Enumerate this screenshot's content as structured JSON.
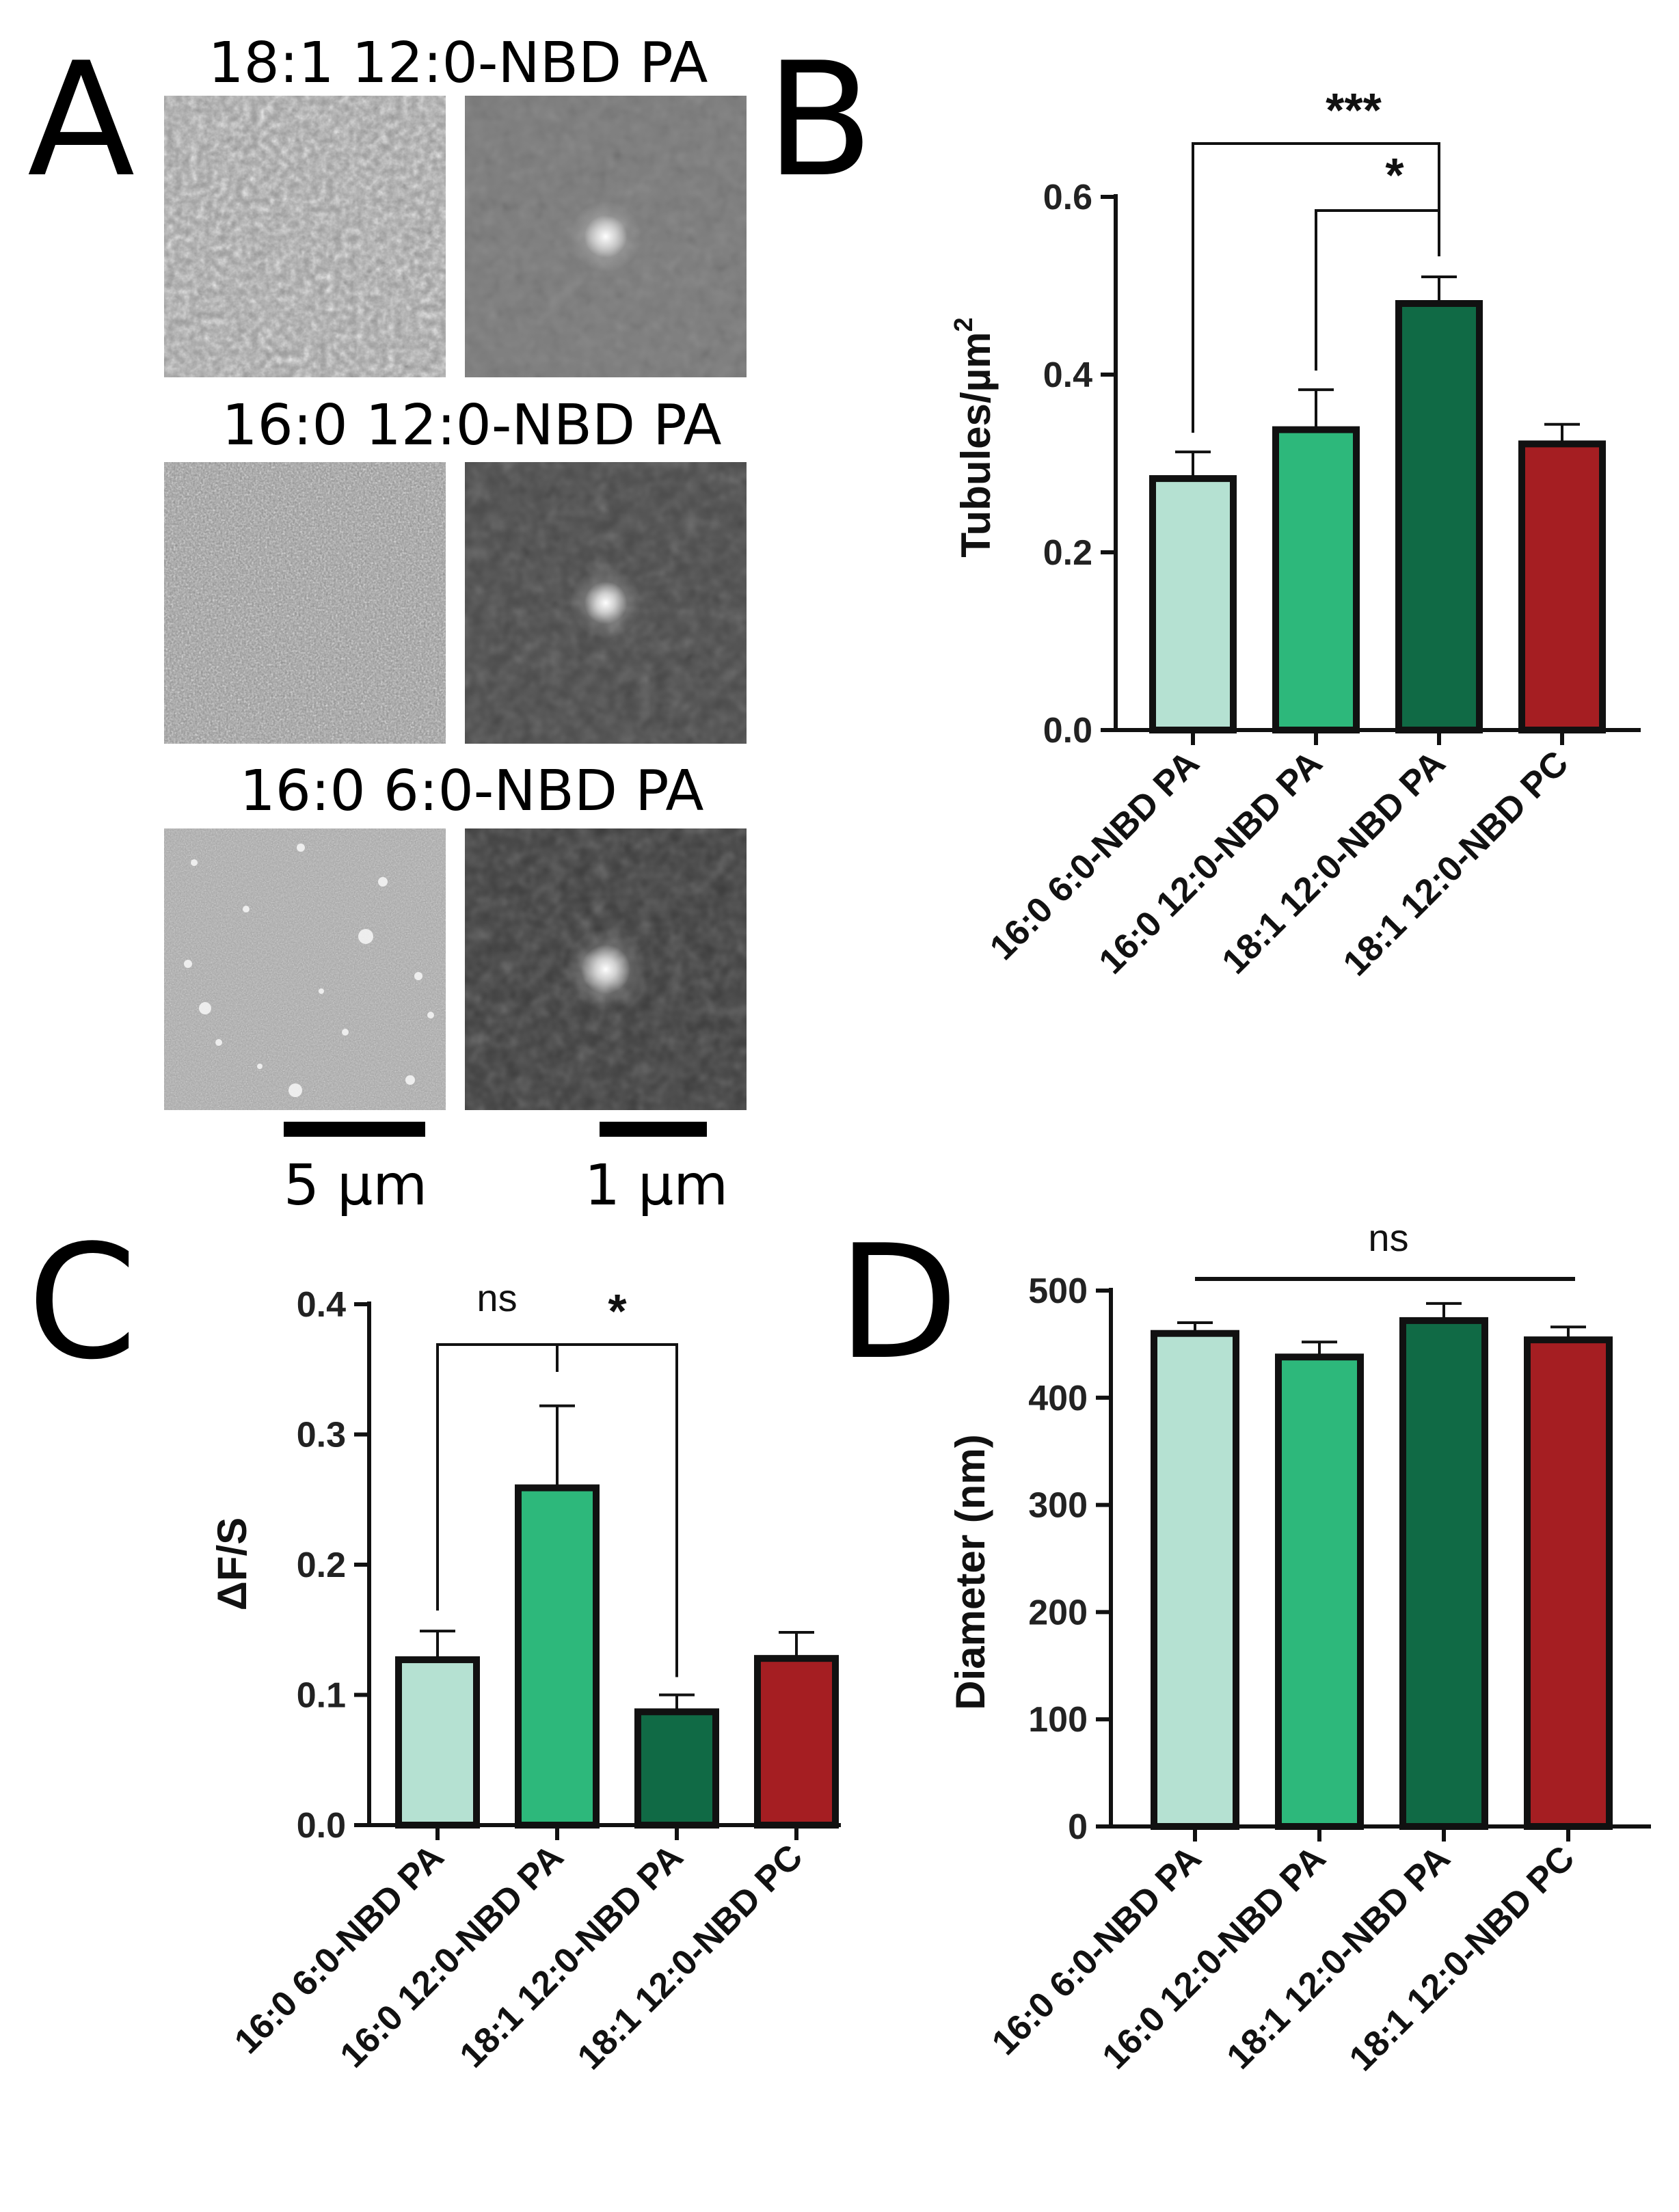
{
  "panels": {
    "a": {
      "letter": "A",
      "rows": [
        {
          "title": "18:1 12:0-NBD PA"
        },
        {
          "title": "16:0 12:0-NBD PA"
        },
        {
          "title": "16:0 6:0-NBD PA"
        }
      ],
      "scalebars": {
        "left": "5 µm",
        "right": "1 µm"
      }
    },
    "b": {
      "letter": "B"
    },
    "c": {
      "letter": "C"
    },
    "d": {
      "letter": "D"
    }
  },
  "colors": {
    "bar1": "#b5e1d2",
    "bar2": "#2db87b",
    "bar3": "#106a45",
    "bar4": "#a51e22",
    "stroke": "#111111"
  },
  "chart_data": [
    {
      "id": "B",
      "type": "bar",
      "categories": [
        "16:0 6:0-NBD PA",
        "16:0 12:0-NBD PA",
        "18:1 12:0-NBD PA",
        "18:1 12:0-NBD PC"
      ],
      "values": [
        0.283,
        0.338,
        0.48,
        0.322
      ],
      "errors": [
        0.03,
        0.045,
        0.03,
        0.022
      ],
      "title": "",
      "xlabel": "",
      "ylabel_main": "Tubules/µm",
      "ylabel_sup": "2",
      "ylim": [
        0,
        0.6
      ],
      "yticks": [
        "0.0",
        "0.2",
        "0.4",
        "0.6"
      ],
      "significance": [
        {
          "from": 0,
          "to": 2,
          "label": "***"
        },
        {
          "from": 1,
          "to": 2,
          "label": "*"
        }
      ]
    },
    {
      "id": "C",
      "type": "bar",
      "categories": [
        "16:0 6:0-NBD PA",
        "16:0 12:0-NBD PA",
        "18:1 12:0-NBD PA",
        "18:1 12:0-NBD PC"
      ],
      "values": [
        0.127,
        0.259,
        0.087,
        0.128
      ],
      "errors": [
        0.022,
        0.063,
        0.013,
        0.02
      ],
      "title": "",
      "xlabel": "",
      "ylabel": "ΔF/S",
      "ylim": [
        0,
        0.4
      ],
      "yticks": [
        "0.0",
        "0.1",
        "0.2",
        "0.3",
        "0.4"
      ],
      "significance": [
        {
          "from": 0,
          "to": 2,
          "mid": 1,
          "left_label": "ns",
          "right_label": "*"
        }
      ]
    },
    {
      "id": "D",
      "type": "bar",
      "categories": [
        "16:0 6:0-NBD PA",
        "16:0 12:0-NBD PA",
        "18:1 12:0-NBD PA",
        "18:1 12:0-NBD PC"
      ],
      "values": [
        460,
        438,
        472,
        454
      ],
      "errors": [
        10,
        14,
        16,
        12
      ],
      "title": "",
      "xlabel": "",
      "ylabel": "Diameter (nm)",
      "ylim": [
        0,
        500
      ],
      "yticks": [
        "0",
        "100",
        "200",
        "300",
        "400",
        "500"
      ],
      "significance": [
        {
          "from": 0,
          "to": 3,
          "label": "ns"
        }
      ]
    }
  ]
}
